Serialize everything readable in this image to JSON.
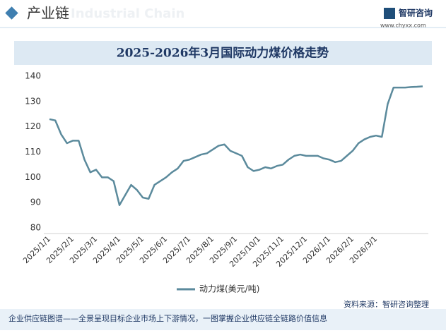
{
  "header": {
    "section": "产业链",
    "watermark": "Industrial Chain",
    "brand": "智研咨询",
    "url": "www.chyxx.com"
  },
  "footer": {
    "source": "资料来源：智研咨询整理",
    "slogan": "企业供应链图谱——全景呈现目标企业市场上下游情况，一图掌握企业供应链全链路价值信息"
  },
  "chart_data": {
    "type": "line",
    "title": "2025-2026年3月国际动力煤价格走势",
    "categories": [
      "2025/1/1",
      null,
      null,
      null,
      "2025/2/1",
      null,
      null,
      null,
      "2025/3/1",
      null,
      null,
      null,
      "2025/4/1",
      null,
      null,
      null,
      "2025/5/1",
      null,
      null,
      null,
      "2025/6/1",
      null,
      null,
      null,
      "2025/7/1",
      null,
      null,
      null,
      "2025/8/1",
      null,
      null,
      null,
      "2025/9/1",
      null,
      null,
      null,
      "2025/10/1",
      null,
      null,
      null,
      "2025/11/1",
      null,
      null,
      null,
      "2025/12/1",
      null,
      null,
      null,
      "2026/1/1",
      null,
      null,
      null,
      "2026/2/1",
      null,
      null,
      null,
      "2026/3/1",
      null,
      null,
      null,
      null,
      null,
      null,
      null,
      null
    ],
    "series": [
      {
        "name": "动力煤(美元/吨)",
        "color": "#5b8a9c",
        "values": [
          123,
          122.5,
          117,
          113.5,
          114.5,
          114.5,
          107,
          102,
          103,
          100,
          100,
          98.5,
          89,
          93,
          97,
          95,
          92,
          91.5,
          97,
          98.5,
          100,
          102,
          103.5,
          106.5,
          107,
          108,
          109,
          109.5,
          111,
          112.5,
          113,
          110.5,
          109.5,
          108.5,
          104,
          102.5,
          103,
          104,
          103.5,
          104.5,
          105,
          107,
          108.5,
          109,
          108.5,
          108.5,
          108.5,
          107.5,
          107,
          106,
          106.5,
          108.5,
          110.5,
          113.5,
          115,
          116,
          116.5,
          116,
          129,
          135.5,
          135.5,
          135.5,
          135.7,
          135.8,
          136
        ]
      }
    ],
    "ylim": [
      80,
      140
    ],
    "yticks": [
      80,
      90,
      100,
      110,
      120,
      130,
      140
    ],
    "grid": false,
    "legend": "bottom"
  }
}
